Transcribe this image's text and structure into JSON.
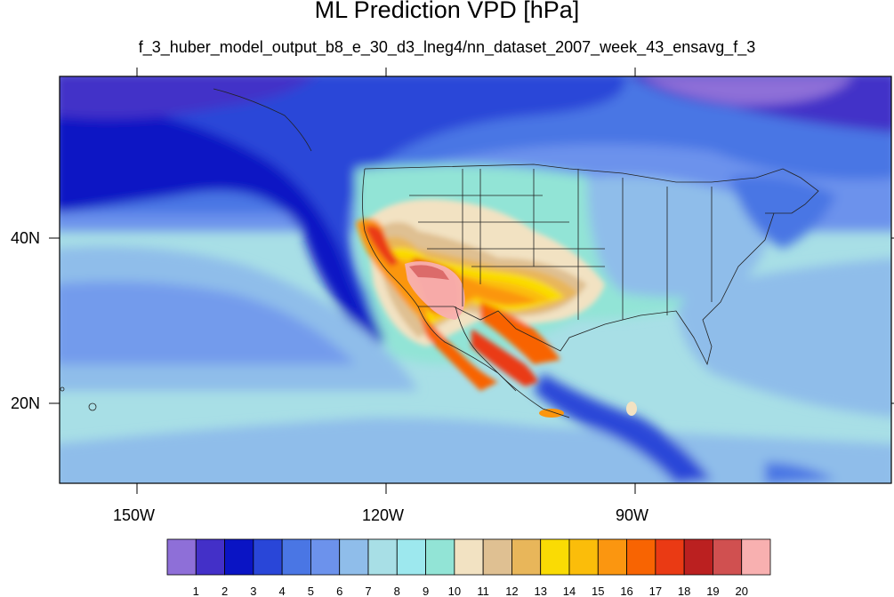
{
  "title": "ML Prediction VPD [hPa]",
  "subtitle": "f_3_huber_model_output_b8_e_30_d3_lneg4/nn_dataset_2007_week_43_ensavg_f_3",
  "axes": {
    "x_ticks": [
      "150W",
      "120W",
      "90W"
    ],
    "y_ticks": [
      "40N",
      "20N"
    ]
  },
  "colorbar": {
    "labels": [
      "1",
      "2",
      "3",
      "4",
      "5",
      "6",
      "7",
      "8",
      "9",
      "10",
      "11",
      "12",
      "13",
      "14",
      "15",
      "16",
      "17",
      "18",
      "19",
      "20"
    ],
    "colors": [
      "#8e6fd8",
      "#4330c8",
      "#0a14c4",
      "#2946d8",
      "#4a76e4",
      "#6c92ec",
      "#8fbdea",
      "#a8dfe6",
      "#9de8ee",
      "#92e4d6",
      "#f2e2c2",
      "#dfc092",
      "#e8b65a",
      "#fadb04",
      "#fbbd0a",
      "#fb9610",
      "#f86402",
      "#ea3a14",
      "#bb2020",
      "#d05050",
      "#f8b0b0"
    ]
  },
  "chart_data": {
    "type": "heatmap",
    "title": "ML Prediction VPD [hPa]",
    "subtitle": "f_3_huber_model_output_b8_e_30_d3_lneg4/nn_dataset_2007_week_43_ensavg_f_3",
    "x_range": [
      -160,
      -61
    ],
    "y_range": [
      10,
      59
    ],
    "x_tick_labels": [
      "150W",
      "120W",
      "90W"
    ],
    "y_tick_labels": [
      "40N",
      "20N"
    ],
    "colorbar_levels": [
      1,
      2,
      3,
      4,
      5,
      6,
      7,
      8,
      9,
      10,
      11,
      12,
      13,
      14,
      15,
      16,
      17,
      18,
      19,
      20
    ],
    "regions": [
      {
        "lon": [
          -118,
          -112
        ],
        "lat": [
          32,
          37
        ],
        "vpd": 20
      },
      {
        "lon": [
          -108,
          -99
        ],
        "lat": [
          28,
          36
        ],
        "vpd": 15
      },
      {
        "lon": [
          -124,
          -121
        ],
        "lat": [
          37,
          41
        ],
        "vpd": 13
      },
      {
        "lon": [
          -110,
          -96
        ],
        "lat": [
          33,
          40
        ],
        "vpd": 11
      },
      {
        "lon": [
          -120,
          -105
        ],
        "lat": [
          40,
          47
        ],
        "vpd": 9
      },
      {
        "lon": [
          -95,
          -75
        ],
        "lat": [
          30,
          48
        ],
        "vpd": 7
      },
      {
        "lon": [
          -160,
          -120
        ],
        "lat": [
          10,
          28
        ],
        "vpd": 7
      },
      {
        "lon": [
          -160,
          -125
        ],
        "lat": [
          44,
          59
        ],
        "vpd": 3
      }
    ]
  }
}
